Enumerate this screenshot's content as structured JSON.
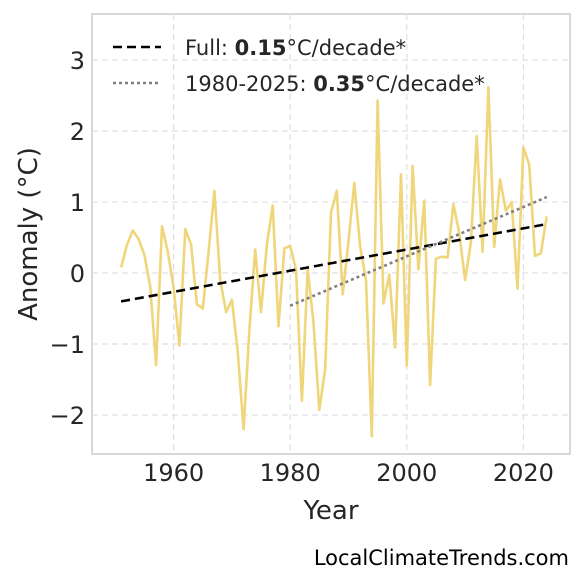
{
  "chart_data": {
    "type": "line",
    "title": "",
    "xlabel": "Year",
    "ylabel": "Anomaly (°C)",
    "xlim": [
      1946,
      2028
    ],
    "ylim": [
      -2.55,
      3.65
    ],
    "xticks": [
      1960,
      1980,
      2000,
      2020
    ],
    "yticks": [
      -2,
      -1,
      0,
      1,
      2,
      3
    ],
    "ytick_labels": [
      "−2",
      "−1",
      "0",
      "1",
      "2",
      "3"
    ],
    "grid": true,
    "legend_position": "top-left",
    "series": [
      {
        "style": "line",
        "color": "#f0d67a",
        "x": [
          1951,
          1952,
          1953,
          1954,
          1955,
          1956,
          1957,
          1958,
          1959,
          1960,
          1961,
          1962,
          1963,
          1964,
          1965,
          1966,
          1967,
          1968,
          1969,
          1970,
          1971,
          1972,
          1973,
          1974,
          1975,
          1976,
          1977,
          1978,
          1979,
          1980,
          1981,
          1982,
          1983,
          1984,
          1985,
          1986,
          1987,
          1988,
          1989,
          1990,
          1991,
          1992,
          1993,
          1994,
          1995,
          1996,
          1997,
          1998,
          1999,
          2000,
          2001,
          2002,
          2003,
          2004,
          2005,
          2006,
          2007,
          2008,
          2009,
          2010,
          2011,
          2012,
          2013,
          2014,
          2015,
          2016,
          2017,
          2018,
          2019,
          2020,
          2021,
          2022,
          2023,
          2024
        ],
        "y": [
          0.08,
          0.4,
          0.6,
          0.48,
          0.25,
          -0.2,
          -1.3,
          0.66,
          0.3,
          -0.2,
          -1.02,
          0.62,
          0.4,
          -0.44,
          -0.5,
          0.3,
          1.16,
          -0.1,
          -0.55,
          -0.38,
          -1.1,
          -2.2,
          -0.8,
          0.33,
          -0.55,
          0.4,
          0.95,
          -0.75,
          0.35,
          0.38,
          0.05,
          -1.8,
          0.05,
          -0.7,
          -1.93,
          -1.35,
          0.85,
          1.16,
          -0.3,
          0.45,
          1.27,
          0.38,
          -0.1,
          -2.3,
          2.43,
          -0.43,
          -0.02,
          -1.05,
          1.39,
          -1.31,
          1.51,
          0.05,
          1.02,
          -1.58,
          0.2,
          0.23,
          0.22,
          0.97,
          0.57,
          -0.1,
          0.43,
          1.93,
          0.3,
          2.62,
          0.37,
          1.32,
          0.88,
          1.0,
          -0.22,
          1.77,
          1.53,
          0.24,
          0.28,
          0.8
        ]
      },
      {
        "name": "Full: 0.15°C/decade*",
        "style": "dashed",
        "color": "#000000",
        "x": [
          1951,
          2024
        ],
        "y": [
          -0.4,
          0.69
        ]
      },
      {
        "name": "1980-2025: 0.35°C/decade*",
        "style": "dotted",
        "color": "#808080",
        "x": [
          1980,
          2024
        ],
        "y": [
          -0.46,
          1.07
        ]
      }
    ],
    "legend": [
      {
        "prefix": "Full: ",
        "value": "0.15",
        "suffix": "°C/decade*"
      },
      {
        "prefix": "1980-2025: ",
        "value": "0.35",
        "suffix": "°C/decade*"
      }
    ]
  },
  "watermark": "LocalClimateTrends.com"
}
